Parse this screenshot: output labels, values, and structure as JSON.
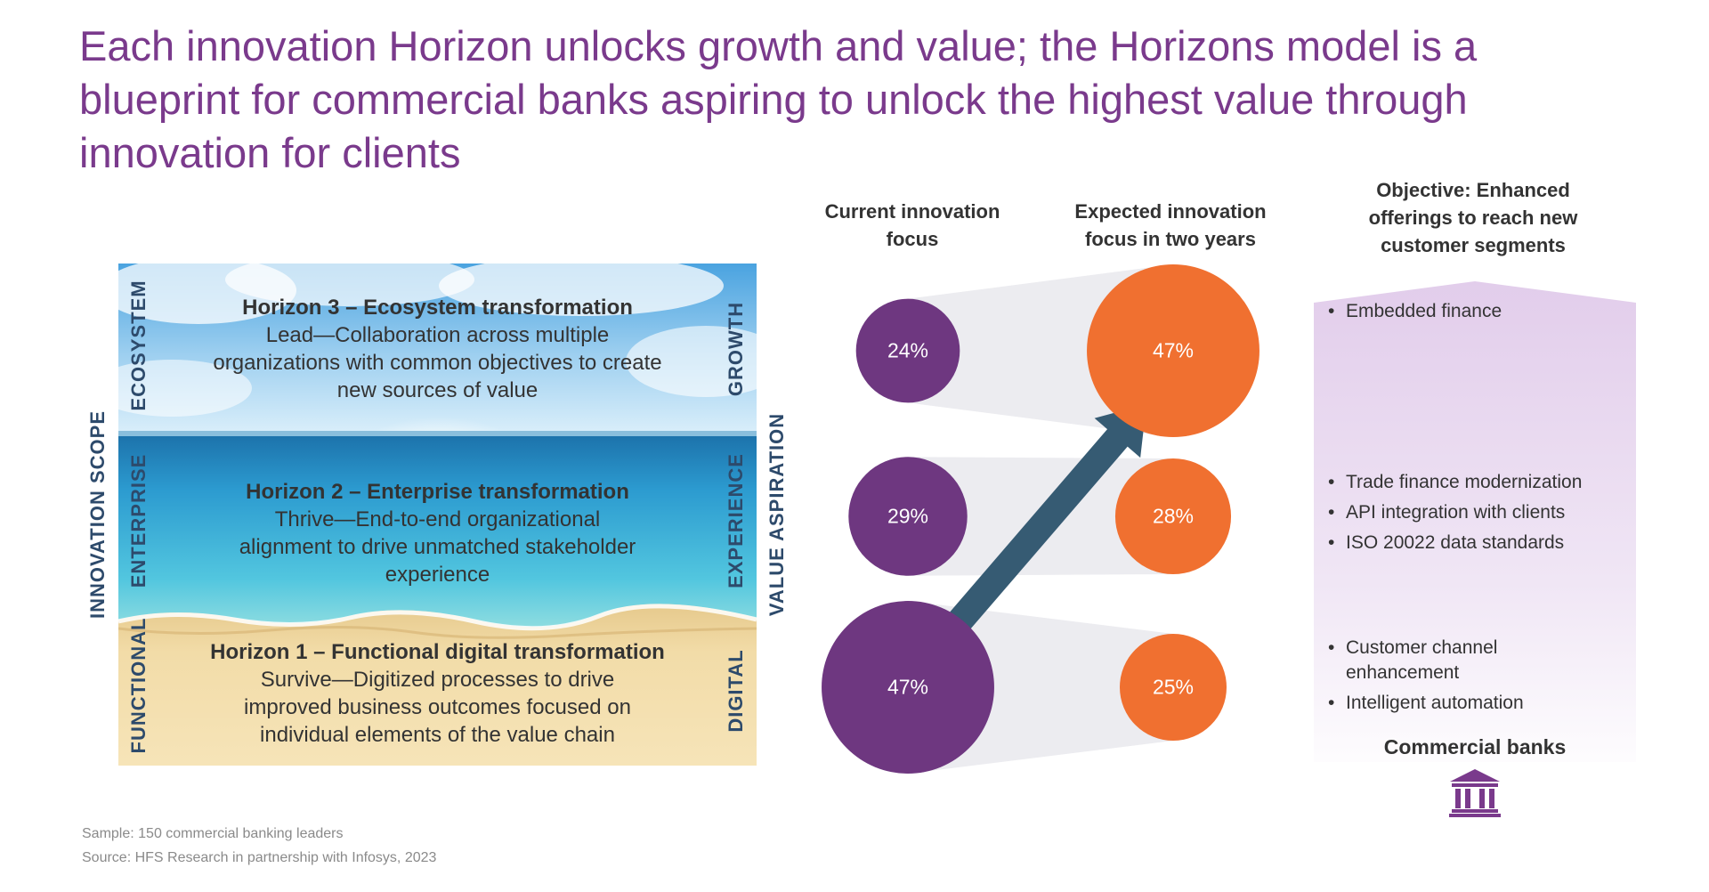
{
  "title": "Each innovation Horizon unlocks growth and value; the Horizons model is a blueprint for commercial banks aspiring to unlock the highest value through innovation for clients",
  "horizons": [
    {
      "title": "Horizon 3 – Ecosystem transformation",
      "desc": "Lead—Collaboration across multiple organizations with common objectives to create new sources of value",
      "scope": "ECOSYSTEM",
      "aspiration": "GROWTH"
    },
    {
      "title": "Horizon 2 – Enterprise transformation",
      "desc": "Thrive—End-to-end organizational alignment to drive unmatched stakeholder experience",
      "scope": "ENTERPRISE",
      "aspiration": "EXPERIENCE"
    },
    {
      "title": "Horizon 1 – Functional digital transformation",
      "desc": "Survive—Digitized processes to drive improved business outcomes focused on individual elements of the value chain",
      "scope": "FUNCTIONAL",
      "aspiration": "DIGITAL"
    }
  ],
  "axis_left": "INNOVATION SCOPE",
  "axis_right": "VALUE ASPIRATION",
  "columns": {
    "current": "Current innovation focus",
    "expected": "Expected innovation focus in two years",
    "objective": "Objective: Enhanced offerings to reach new customer segments"
  },
  "chart_data": {
    "type": "bubble-comparison",
    "rows": [
      "Horizon 3",
      "Horizon 2",
      "Horizon 1"
    ],
    "current": [
      24,
      29,
      47
    ],
    "expected": [
      47,
      28,
      25
    ],
    "current_labels": [
      "24%",
      "29%",
      "47%"
    ],
    "expected_labels": [
      "47%",
      "28%",
      "25%"
    ],
    "colors": {
      "current": "#6e3780",
      "expected": "#f07030",
      "arrow": "#365b73"
    }
  },
  "objectives": [
    [
      "Embedded finance"
    ],
    [
      "Trade finance modernization",
      "API integration with clients",
      "ISO 20022 data standards"
    ],
    [
      "Customer channel enhancement",
      "Intelligent automation"
    ]
  ],
  "commercial_banks": "Commercial banks",
  "bank_icon": "bank-icon",
  "footnotes": {
    "sample": "Sample: 150 commercial banking leaders",
    "source": "Source: HFS Research in partnership with Infosys, 2023"
  }
}
